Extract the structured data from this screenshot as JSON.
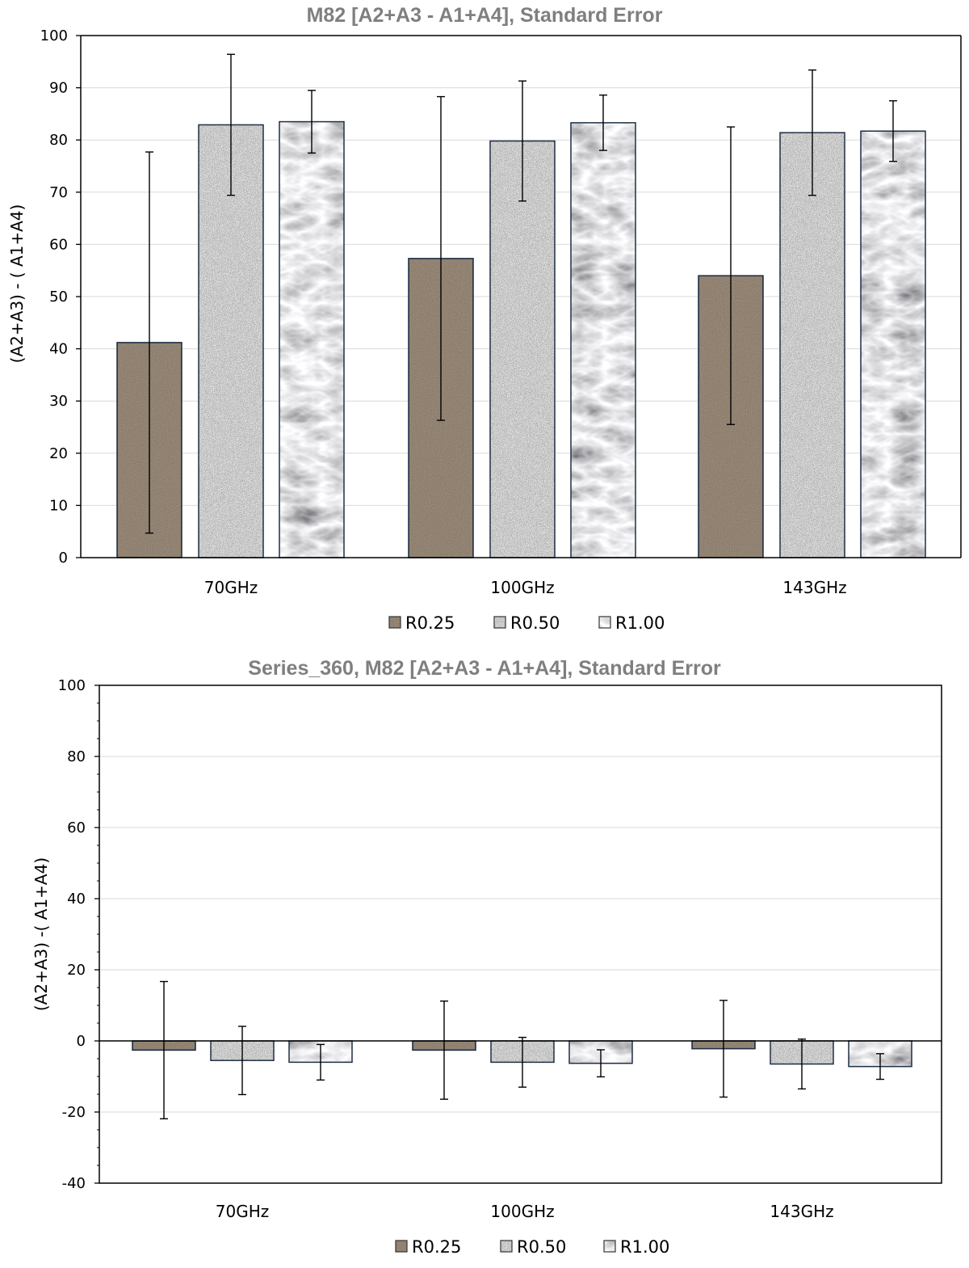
{
  "colors": {
    "r025_base": "#a89784",
    "r050_base": "#7b7b7b",
    "r100_base": "#eef0f0",
    "bar_stroke": "#1f2f45",
    "grid": "#d9d9d9",
    "axis": "#000000"
  },
  "chart_data": [
    {
      "type": "bar",
      "title": "M82   [A2+A3 - A1+A4],  Standard Error",
      "ylabel": "(A2+A3) - ( A1+A4)",
      "categories": [
        "70GHz",
        "100GHz",
        "143GHz"
      ],
      "ylim": [
        0,
        100
      ],
      "yticks": [
        0,
        10,
        20,
        30,
        40,
        50,
        60,
        70,
        80,
        90,
        100
      ],
      "grid": true,
      "legend": "bottom",
      "series": [
        {
          "name": "R0.25",
          "values": [
            41.2,
            57.3,
            54.0
          ],
          "errors": [
            36.5,
            31.0,
            28.5
          ]
        },
        {
          "name": "R0.50",
          "values": [
            82.9,
            79.8,
            81.4
          ],
          "errors": [
            13.5,
            11.5,
            12.0
          ]
        },
        {
          "name": "R1.00",
          "values": [
            83.5,
            83.3,
            81.7
          ],
          "errors": [
            6.0,
            5.3,
            5.8
          ]
        }
      ]
    },
    {
      "type": "bar",
      "title": "Series_360, M82  [A2+A3 - A1+A4],  Standard Error",
      "ylabel": "(A2+A3) -( A1+A4)",
      "categories": [
        "70GHz",
        "100GHz",
        "143GHz"
      ],
      "ylim": [
        -40,
        100
      ],
      "yticks": [
        -40,
        -20,
        0,
        20,
        40,
        60,
        80,
        100
      ],
      "grid": true,
      "legend": "bottom",
      "series": [
        {
          "name": "R0.25",
          "values": [
            -2.6,
            -2.6,
            -2.2
          ],
          "errors": [
            19.3,
            13.8,
            13.6
          ]
        },
        {
          "name": "R0.50",
          "values": [
            -5.5,
            -6.0,
            -6.5
          ],
          "errors": [
            9.6,
            7.0,
            7.0
          ]
        },
        {
          "name": "R1.00",
          "values": [
            -6.0,
            -6.3,
            -7.2
          ],
          "errors": [
            5.0,
            3.8,
            3.6
          ]
        }
      ]
    }
  ]
}
